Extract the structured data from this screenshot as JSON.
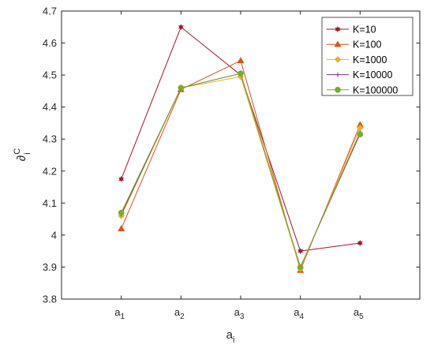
{
  "chart_data": {
    "type": "line",
    "title": "",
    "xlabel": "a",
    "xlabel_subscript": "i",
    "ylabel": "∂",
    "ylabel_superscript": "C",
    "ylabel_subscript": "i",
    "categories": [
      {
        "base": "a",
        "sub": "1"
      },
      {
        "base": "a",
        "sub": "2"
      },
      {
        "base": "a",
        "sub": "3"
      },
      {
        "base": "a",
        "sub": "4"
      },
      {
        "base": "a",
        "sub": "5"
      }
    ],
    "xlim": [
      0,
      6
    ],
    "ylim": [
      3.8,
      4.7
    ],
    "yticks": [
      "3.8",
      "3.9",
      "4",
      "4.1",
      "4.2",
      "4.3",
      "4.4",
      "4.5",
      "4.6",
      "4.7"
    ],
    "grid": false,
    "legend_position": "top-right",
    "series": [
      {
        "name": "K=10",
        "color": "#a2142f",
        "marker": "hexagram",
        "values": [
          4.175,
          4.65,
          4.5,
          3.95,
          3.975
        ]
      },
      {
        "name": "K=100",
        "color": "#d95319",
        "marker": "triangle",
        "values": [
          4.02,
          4.455,
          4.545,
          3.89,
          4.345
        ]
      },
      {
        "name": "K=1000",
        "color": "#edb120",
        "marker": "diamond",
        "values": [
          4.06,
          4.46,
          4.495,
          3.895,
          4.335
        ]
      },
      {
        "name": "K=10000",
        "color": "#7e2f8e",
        "marker": "plus",
        "values": [
          4.065,
          4.46,
          4.505,
          3.9,
          4.32
        ]
      },
      {
        "name": "K=100000",
        "color": "#77ac30",
        "marker": "circle",
        "values": [
          4.07,
          4.46,
          4.505,
          3.9,
          4.315
        ]
      }
    ]
  }
}
